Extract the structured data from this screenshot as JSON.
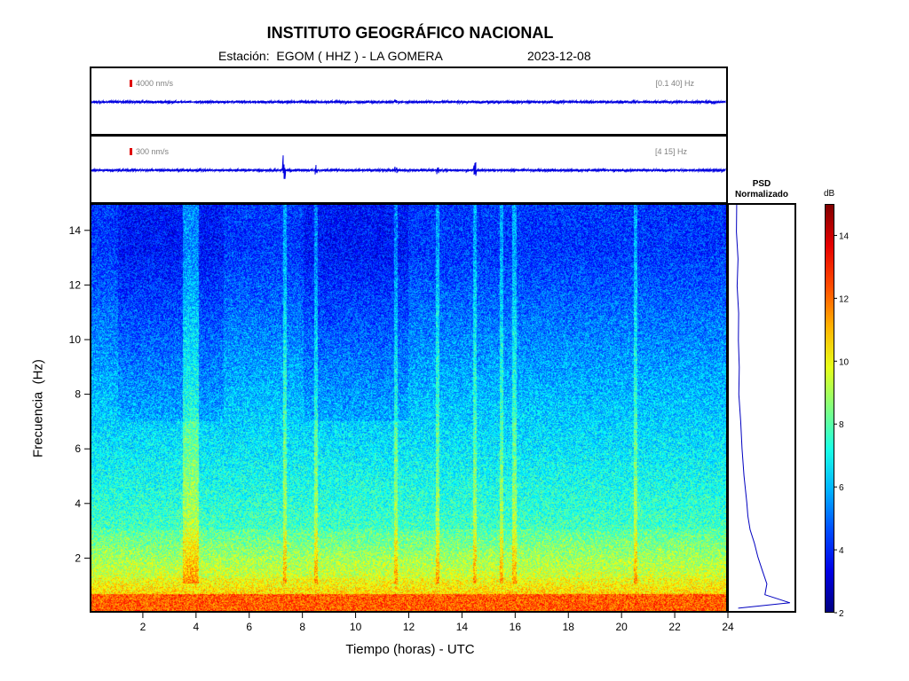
{
  "header": {
    "title": "INSTITUTO GEOGRÁFICO NACIONAL",
    "station_line": "Estación:  EGOM ( HHZ ) - LA GOMERA",
    "date": "2023-12-08"
  },
  "traces": [
    {
      "scale_label": "4000 nm/s",
      "band_label": "[0.1 40] Hz",
      "scale_color": "#e00000",
      "trace_color": "#0000e0"
    },
    {
      "scale_label": "300 nm/s",
      "band_label": "[4 15] Hz",
      "scale_color": "#e00000",
      "trace_color": "#0000e0"
    }
  ],
  "psd_panel": {
    "title_line1": "PSD",
    "title_line2": "Normalizado"
  },
  "colorbar": {
    "unit": "dB",
    "ticks": [
      "14",
      "12",
      "10",
      "8",
      "6",
      "4",
      "2"
    ],
    "range": [
      2,
      15
    ],
    "colormap": "jet"
  },
  "chart_data": {
    "type": "heatmap",
    "title": "INSTITUTO GEOGRÁFICO NACIONAL",
    "xlabel": "Tiempo (horas) - UTC",
    "ylabel": "Frecuencia  (Hz)",
    "xlim": [
      0,
      24
    ],
    "ylim": [
      0,
      15
    ],
    "x_ticks": [
      "2",
      "4",
      "6",
      "8",
      "10",
      "12",
      "14",
      "16",
      "18",
      "20",
      "22",
      "24"
    ],
    "y_ticks": [
      "14",
      "12",
      "10",
      "8",
      "6",
      "4",
      "2"
    ],
    "colorbar_unit": "dB",
    "colorbar_range": [
      2,
      15
    ],
    "psd_normalized": {
      "freq_hz": [
        0.1,
        0.3,
        0.6,
        1.0,
        1.5,
        2.0,
        2.5,
        3.0,
        3.5,
        4.0,
        5.0,
        6.0,
        7.0,
        8.0,
        9.0,
        10.0,
        11.0,
        12.0,
        13.0,
        14.0,
        15.0
      ],
      "value": [
        0.1,
        0.98,
        0.55,
        0.58,
        0.5,
        0.43,
        0.37,
        0.31,
        0.27,
        0.24,
        0.2,
        0.17,
        0.14,
        0.12,
        0.11,
        0.1,
        0.1,
        0.09,
        0.09,
        0.08,
        0.07
      ]
    },
    "notable_events_hours": [
      7.3,
      8.5,
      11.5,
      13.1,
      14.5,
      15.5,
      16.0,
      20.6
    ]
  }
}
